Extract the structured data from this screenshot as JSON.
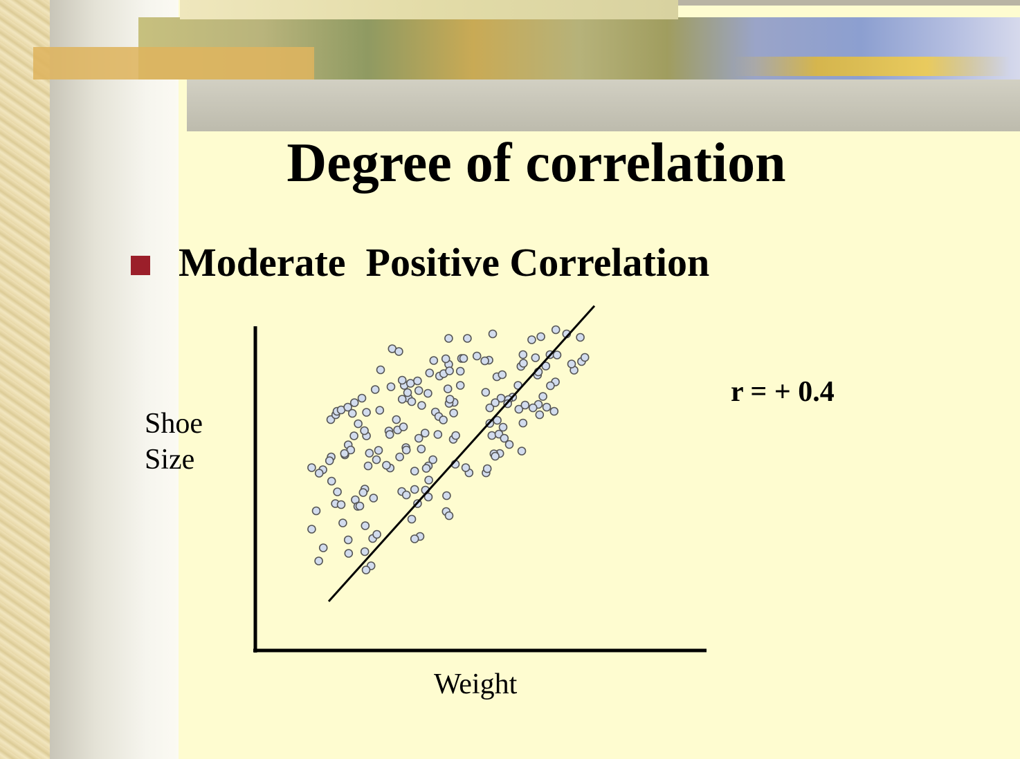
{
  "slide": {
    "title": "Degree of correlation",
    "bullet": "Moderate  Positive Correlation",
    "bullet_color": "#9b1f2a",
    "background_color": "#fefcd0",
    "correlation_label": "r = + 0.4"
  },
  "chart_data": {
    "type": "scatter",
    "title": "",
    "xlabel": "Weight",
    "ylabel_lines": [
      "Shoe",
      "Size"
    ],
    "xlim": [
      0,
      100
    ],
    "ylim": [
      0,
      100
    ],
    "axis_ticks": false,
    "grid": false,
    "marker": {
      "fill": "#d2dcee",
      "stroke": "#555555"
    },
    "points": [
      [
        52.0,
        91.4
      ],
      [
        61.4,
        89.7
      ],
      [
        63.6,
        90.6
      ],
      [
        67.2,
        92.6
      ],
      [
        69.8,
        91.4
      ],
      [
        73.1,
        90.4
      ],
      [
        41.4,
        82.6
      ],
      [
        48.2,
        85.0
      ],
      [
        51.1,
        83.8
      ],
      [
        50.1,
        83.6
      ],
      [
        59.3,
        85.4
      ],
      [
        62.3,
        84.5
      ],
      [
        65.8,
        85.4
      ],
      [
        67.5,
        85.3
      ],
      [
        71.6,
        80.9
      ],
      [
        71.0,
        82.7
      ],
      [
        73.4,
        83.4
      ],
      [
        74.2,
        84.6
      ],
      [
        67.1,
        77.5
      ],
      [
        62.8,
        79.5
      ],
      [
        63.0,
        80.4
      ],
      [
        64.8,
        82.1
      ],
      [
        58.8,
        82.0
      ],
      [
        59.4,
        82.9
      ],
      [
        39.2,
        79.2
      ],
      [
        40.2,
        79.9
      ],
      [
        31.7,
        72.8
      ],
      [
        31.5,
        74.4
      ],
      [
        34.2,
        75.0
      ],
      [
        38.2,
        68.8
      ],
      [
        34.9,
        70.7
      ],
      [
        32.5,
        71.8
      ],
      [
        30.2,
        72.5
      ],
      [
        30.7,
        76.5
      ],
      [
        32.2,
        77.1
      ],
      [
        33.9,
        77.8
      ],
      [
        41.6,
        80.7
      ],
      [
        44.2,
        80.6
      ],
      [
        44.5,
        84.3
      ],
      [
        40.7,
        84.2
      ],
      [
        37.8,
        83.7
      ],
      [
        41.4,
        90.1
      ],
      [
        45.9,
        90.1
      ],
      [
        45.0,
        84.3
      ],
      [
        41.2,
        75.5
      ],
      [
        36.4,
        74.2
      ],
      [
        36.8,
        80.1
      ],
      [
        27.8,
        87.1
      ],
      [
        29.4,
        86.3
      ],
      [
        25.0,
        81.0
      ],
      [
        20.5,
        72.8
      ],
      [
        23.7,
        75.3
      ],
      [
        19.6,
        65.4
      ],
      [
        28.8,
        66.6
      ],
      [
        18.2,
        68.4
      ],
      [
        13.0,
        66.6
      ],
      [
        14.2,
        68.0
      ],
      [
        14.5,
        69.0
      ],
      [
        15.5,
        69.4
      ],
      [
        17.1,
        70.2
      ],
      [
        27.5,
        76.1
      ],
      [
        30.2,
        78.0
      ],
      [
        21.6,
        68.7
      ],
      [
        24.8,
        69.3
      ],
      [
        18.7,
        71.5
      ],
      [
        35.7,
        62.7
      ],
      [
        34.2,
        61.2
      ],
      [
        42.5,
        60.9
      ],
      [
        38.8,
        62.3
      ],
      [
        43.1,
        62.0
      ],
      [
        51.8,
        62.0
      ],
      [
        56.0,
        59.4
      ],
      [
        59.0,
        57.5
      ],
      [
        53.7,
        56.8
      ],
      [
        52.3,
        56.7
      ],
      [
        31.1,
        58.5
      ],
      [
        36.5,
        53.2
      ],
      [
        36.0,
        52.5
      ],
      [
        27.3,
        52.6
      ],
      [
        26.4,
        53.4
      ],
      [
        24.0,
        55.0
      ],
      [
        22.3,
        56.9
      ],
      [
        24.5,
        57.7
      ],
      [
        29.6,
        55.8
      ],
      [
        31.2,
        57.8
      ],
      [
        34.8,
        58.1
      ],
      [
        29.1,
        63.6
      ],
      [
        30.5,
        64.5
      ],
      [
        27.0,
        63.3
      ],
      [
        27.2,
        62.3
      ],
      [
        21.6,
        61.9
      ],
      [
        21.1,
        63.4
      ],
      [
        18.6,
        61.9
      ],
      [
        17.2,
        59.3
      ],
      [
        17.8,
        57.8
      ],
      [
        16.4,
        56.4
      ],
      [
        42.6,
        68.5
      ],
      [
        39.0,
        67.5
      ],
      [
        40.1,
        66.5
      ],
      [
        42.7,
        71.6
      ],
      [
        41.5,
        71.3
      ],
      [
        41.7,
        72.5
      ],
      [
        54.0,
        72.8
      ],
      [
        56.8,
        73.1
      ],
      [
        58.1,
        76.5
      ],
      [
        55.8,
        72.4
      ],
      [
        55.6,
        71.2
      ],
      [
        58.3,
        69.6
      ],
      [
        53.1,
        66.4
      ],
      [
        54.5,
        64.4
      ],
      [
        59.3,
        65.6
      ],
      [
        59.8,
        70.8
      ],
      [
        44.2,
        76.5
      ],
      [
        50.3,
        74.5
      ],
      [
        51.3,
        70.0
      ],
      [
        52.6,
        71.5
      ],
      [
        51.3,
        65.5
      ],
      [
        63.0,
        71.0
      ],
      [
        66.8,
        69.0
      ],
      [
        65.0,
        70.2
      ],
      [
        61.7,
        70.0
      ],
      [
        63.3,
        68.0
      ],
      [
        64.1,
        73.3
      ],
      [
        65.9,
        76.4
      ],
      [
        53.0,
        79.0
      ],
      [
        54.3,
        79.6
      ],
      [
        53.5,
        62.4
      ],
      [
        54.8,
        61.2
      ],
      [
        52.6,
        56.0
      ],
      [
        13.2,
        48.8
      ],
      [
        8.4,
        52.7
      ],
      [
        11.1,
        52.1
      ],
      [
        10.2,
        51.1
      ],
      [
        13.1,
        55.8
      ],
      [
        12.7,
        54.7
      ],
      [
        16.3,
        56.8
      ],
      [
        22.0,
        53.2
      ],
      [
        21.2,
        46.5
      ],
      [
        20.8,
        45.5
      ],
      [
        14.6,
        45.7
      ],
      [
        18.9,
        43.4
      ],
      [
        19.5,
        41.5
      ],
      [
        30.1,
        45.8
      ],
      [
        31.2,
        44.8
      ],
      [
        33.2,
        46.4
      ],
      [
        35.8,
        46.2
      ],
      [
        36.6,
        49.1
      ],
      [
        36.5,
        44.2
      ],
      [
        33.9,
        42.3
      ],
      [
        40.9,
        44.6
      ],
      [
        37.6,
        55.0
      ],
      [
        33.2,
        51.7
      ],
      [
        23.3,
        43.9
      ],
      [
        20.0,
        41.6
      ],
      [
        14.1,
        42.3
      ],
      [
        15.5,
        42.0
      ],
      [
        9.5,
        40.2
      ],
      [
        8.4,
        34.9
      ],
      [
        11.2,
        29.5
      ],
      [
        10.1,
        25.7
      ],
      [
        17.2,
        31.8
      ],
      [
        17.3,
        27.9
      ],
      [
        15.9,
        36.7
      ],
      [
        23.1,
        32.2
      ],
      [
        24.1,
        33.4
      ],
      [
        21.3,
        35.9
      ],
      [
        21.2,
        28.4
      ],
      [
        22.7,
        24.3
      ],
      [
        21.5,
        23.1
      ],
      [
        34.5,
        32.8
      ],
      [
        33.2,
        32.1
      ],
      [
        40.8,
        40.0
      ],
      [
        41.5,
        38.8
      ],
      [
        32.5,
        37.8
      ],
      [
        43.0,
        53.7
      ],
      [
        46.3,
        51.2
      ],
      [
        45.5,
        52.7
      ],
      [
        50.4,
        51.2
      ],
      [
        50.7,
        52.4
      ]
    ],
    "trend_line": {
      "x": [
        12.5,
        76.5
      ],
      "y": [
        14.0,
        99.5
      ]
    }
  }
}
